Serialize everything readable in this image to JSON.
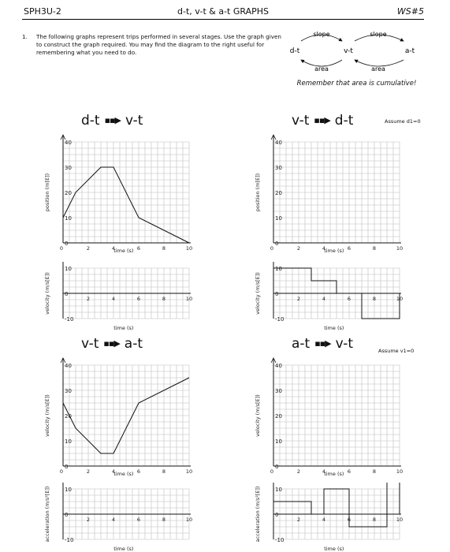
{
  "header": {
    "course": "SPH3U-2",
    "title": "d-t, v-t & a-t GRAPHS",
    "sheet": "WS#5"
  },
  "question": {
    "number": "1.",
    "text": "The following graphs represent trips performed in several stages. Use the graph given to construct the graph required. You may find the diagram to the right useful for remembering what you need to do."
  },
  "diagram": {
    "d": "d-t",
    "v": "v-t",
    "a": "a-t",
    "slope1": "slope",
    "slope2": "slope",
    "area1": "area",
    "area2": "area"
  },
  "note": "Remember that area is cumulative!",
  "panels": [
    {
      "title_from": "d-t",
      "title_to": "v-t",
      "assume": "",
      "top_ylabel": "position (m[E])",
      "top_xlabel": "time (s)",
      "bottom_ylabel": "velocity (m/s[E])",
      "bottom_xlabel": "time (s)"
    },
    {
      "title_from": "v-t",
      "title_to": "d-t",
      "assume": "Assume d1=0",
      "top_ylabel": "position (m[E])",
      "top_xlabel": "time (s)",
      "bottom_ylabel": "velocity (m/s[E])",
      "bottom_xlabel": "time (s)"
    },
    {
      "title_from": "v-t",
      "title_to": "a-t",
      "assume": "",
      "top_ylabel": "velocity (m/s[E])",
      "top_xlabel": "time (s)",
      "bottom_ylabel": "acceleration (m/s²[E])",
      "bottom_xlabel": "time (s)"
    },
    {
      "title_from": "a-t",
      "title_to": "v-t",
      "assume": "Assume v1=0",
      "top_ylabel": "velocity (m/s[E])",
      "top_xlabel": "time (s)",
      "bottom_ylabel": "acceleration (m/s²[E])",
      "bottom_xlabel": "time (s)"
    }
  ],
  "chart_data": [
    {
      "type": "line",
      "ylabel": "position (m[E])",
      "xlabel": "time (s)",
      "xlim": [
        0,
        10
      ],
      "ylim": [
        0,
        40
      ],
      "x_ticks": [
        "0",
        "2",
        "4",
        "6",
        "8",
        "10"
      ],
      "y_ticks": [
        "0",
        "10",
        "20",
        "30",
        "40"
      ],
      "x": [
        0,
        1,
        3,
        4,
        6,
        10
      ],
      "y": [
        10,
        20,
        30,
        30,
        10,
        0
      ]
    },
    {
      "type": "line",
      "ylabel": "velocity (m/s[E])",
      "xlabel": "time (s)",
      "xlim": [
        0,
        10
      ],
      "ylim": [
        -10,
        10
      ],
      "x_ticks": [
        "2",
        "4",
        "6",
        "8",
        "10"
      ],
      "y_ticks": [
        "-10",
        "0",
        "10"
      ],
      "x": [],
      "y": []
    },
    {
      "type": "line",
      "ylabel": "position (m[E])",
      "xlabel": "time (s)",
      "xlim": [
        0,
        10
      ],
      "ylim": [
        0,
        40
      ],
      "x_ticks": [
        "0",
        "2",
        "4",
        "6",
        "8",
        "10"
      ],
      "y_ticks": [
        "0",
        "10",
        "20",
        "30",
        "40"
      ],
      "x": [],
      "y": []
    },
    {
      "type": "line",
      "ylabel": "velocity (m/s[E])",
      "xlabel": "time (s)",
      "xlim": [
        0,
        10
      ],
      "ylim": [
        -10,
        10
      ],
      "x_ticks": [
        "2",
        "4",
        "6",
        "8",
        "10"
      ],
      "y_ticks": [
        "-10",
        "0",
        "10"
      ],
      "x": [
        0,
        3,
        3,
        5,
        5,
        7,
        7,
        10,
        10
      ],
      "y": [
        10,
        10,
        5,
        5,
        0,
        0,
        -10,
        -10,
        0
      ]
    },
    {
      "type": "line",
      "ylabel": "velocity (m/s[E])",
      "xlabel": "time (s)",
      "xlim": [
        0,
        10
      ],
      "ylim": [
        0,
        40
      ],
      "x_ticks": [
        "0",
        "2",
        "4",
        "6",
        "8",
        "10"
      ],
      "y_ticks": [
        "0",
        "10",
        "20",
        "30",
        "40"
      ],
      "x": [
        0,
        1,
        3,
        4,
        6,
        10
      ],
      "y": [
        25,
        15,
        5,
        5,
        25,
        35
      ]
    },
    {
      "type": "line",
      "ylabel": "acceleration (m/s²[E])",
      "xlabel": "time (s)",
      "xlim": [
        0,
        10
      ],
      "ylim": [
        -10,
        10
      ],
      "x_ticks": [
        "2",
        "4",
        "6",
        "8",
        "10"
      ],
      "y_ticks": [
        "-10",
        "0",
        "10"
      ],
      "x": [],
      "y": []
    },
    {
      "type": "line",
      "ylabel": "velocity (m/s[E])",
      "xlabel": "time (s)",
      "xlim": [
        0,
        10
      ],
      "ylim": [
        0,
        40
      ],
      "x_ticks": [
        "0",
        "2",
        "4",
        "6",
        "8",
        "10"
      ],
      "y_ticks": [
        "0",
        "10",
        "20",
        "30",
        "40"
      ],
      "x": [],
      "y": []
    },
    {
      "type": "line",
      "ylabel": "acceleration (m/s²[E])",
      "xlabel": "time (s)",
      "xlim": [
        0,
        10
      ],
      "ylim": [
        -10,
        10
      ],
      "x_ticks": [
        "2",
        "4",
        "6",
        "8",
        "10"
      ],
      "y_ticks": [
        "-10",
        "0",
        "10"
      ],
      "x": [
        0,
        3,
        3,
        4,
        4,
        6,
        6,
        9,
        9,
        10,
        10
      ],
      "y": [
        5,
        5,
        0,
        0,
        10,
        10,
        -5,
        -5,
        15,
        15,
        0
      ]
    }
  ]
}
